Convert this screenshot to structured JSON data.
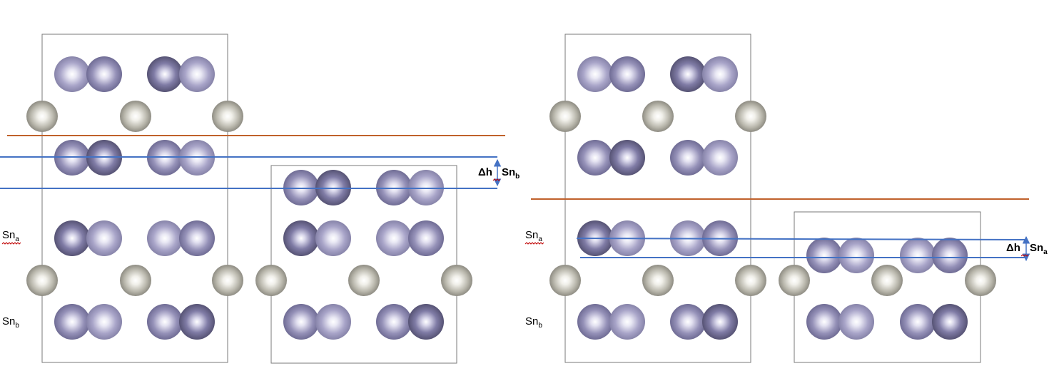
{
  "labels": {
    "sn_base": "Sn",
    "sub_a": "a",
    "sub_b": "b",
    "delta_h": "Δh"
  },
  "colors": {
    "sn_light": "#a7a3c6",
    "sn_dark": "#6e6a91",
    "sn_mid": "#8c88ad",
    "o_atom": "#b0aea4",
    "slab_line": "#c0612b",
    "ref_line": "#4472c4",
    "cell_border": "#7a7a7a"
  }
}
